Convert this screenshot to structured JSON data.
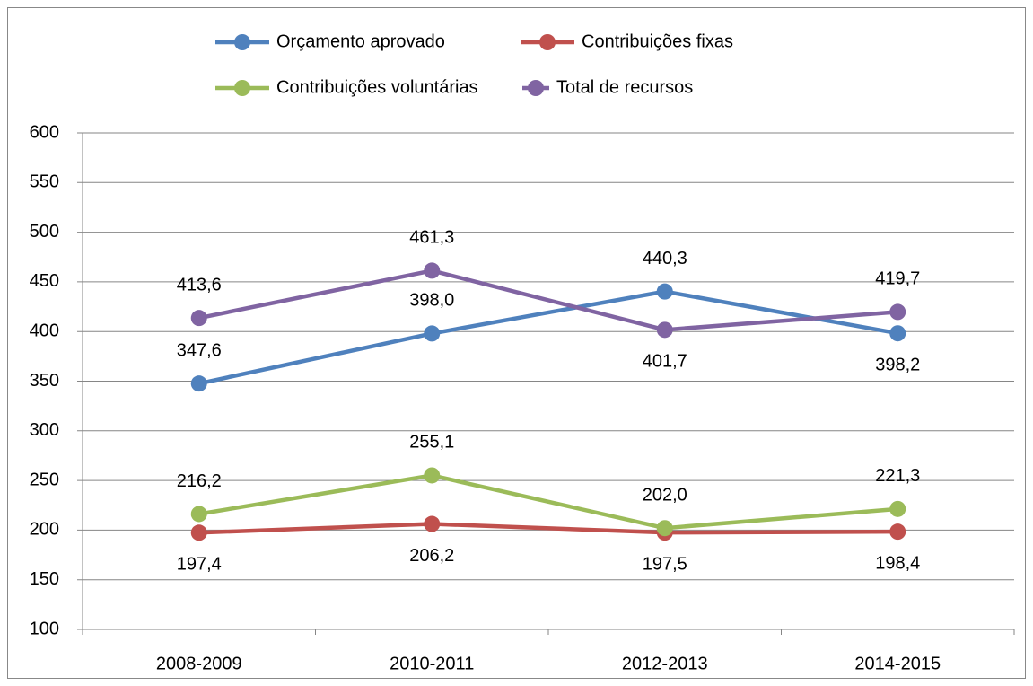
{
  "chart_data": {
    "type": "line",
    "categories": [
      "2008-2009",
      "2010-2011",
      "2012-2013",
      "2014-2015"
    ],
    "series": [
      {
        "name": "Orçamento aprovado",
        "color": "#4f81bd",
        "values": [
          347.6,
          398.0,
          440.3,
          398.2
        ],
        "value_labels": [
          "347,6",
          "398,0",
          "440,3",
          "398,2"
        ]
      },
      {
        "name": "Contribuições fixas",
        "color": "#c0504d",
        "values": [
          197.4,
          206.2,
          197.5,
          198.4
        ],
        "value_labels": [
          "197,4",
          "206,2",
          "197,5",
          "198,4"
        ]
      },
      {
        "name": "Contribuições voluntárias",
        "color": "#9bbb59",
        "values": [
          216.2,
          255.1,
          202.0,
          221.3
        ],
        "value_labels": [
          "216,2",
          "255,1",
          "202,0",
          "221,3"
        ]
      },
      {
        "name": "Total de recursos",
        "color": "#8064a2",
        "values": [
          413.6,
          461.3,
          401.7,
          419.7
        ],
        "value_labels": [
          "413,6",
          "461,3",
          "401,7",
          "419,7"
        ]
      }
    ],
    "ylim": [
      100,
      600
    ],
    "yticks": [
      100,
      150,
      200,
      250,
      300,
      350,
      400,
      450,
      500,
      550,
      600
    ],
    "grid": true,
    "legend": "top"
  }
}
